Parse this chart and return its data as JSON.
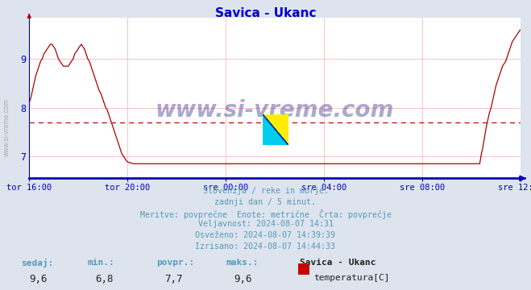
{
  "title": "Savica - Ukanc",
  "title_color": "#0000cc",
  "bg_color": "#dde4ee",
  "plot_bg_color": "#ffffff",
  "line_color": "#aa0000",
  "grid_color": "#ffaaaa",
  "grid_color_major": "#ffaaaa",
  "axis_color": "#0000bb",
  "avg_line_color": "#cc0000",
  "avg_value": 7.7,
  "y_min": 6.55,
  "y_max": 9.85,
  "y_ticks": [
    7,
    8,
    9
  ],
  "x_tick_labels": [
    "tor 16:00",
    "tor 20:00",
    "sre 00:00",
    "sre 04:00",
    "sre 08:00",
    "sre 12:00"
  ],
  "watermark_text": "www.si-vreme.com",
  "watermark_color": "#1a237e",
  "watermark_alpha": 0.38,
  "sidebar_text": "www.si-vreme.com",
  "footer_lines": [
    "Slovenija / reke in morje.",
    "zadnji dan / 5 minut.",
    "Meritve: povprečne  Enote: metrične  Črta: povprečje",
    "Veljavnost: 2024-08-07 14:31",
    "Osveženo: 2024-08-07 14:39:39",
    "Izrisano: 2024-08-07 14:44:33"
  ],
  "footer_color": "#5599bb",
  "stats_labels": [
    "sedaj:",
    "min.:",
    "povpr.:",
    "maks.:"
  ],
  "stats_values": [
    "9,6",
    "6,8",
    "7,7",
    "9,6"
  ],
  "legend_station": "Savica - Ukanc",
  "legend_label": "temperatura[C]",
  "legend_color": "#cc0000",
  "temp_data": [
    8.1,
    8.2,
    8.35,
    8.5,
    8.65,
    8.75,
    8.85,
    8.95,
    9.0,
    9.1,
    9.15,
    9.2,
    9.25,
    9.3,
    9.3,
    9.25,
    9.2,
    9.1,
    9.0,
    8.95,
    8.9,
    8.85,
    8.85,
    8.85,
    8.85,
    8.9,
    8.95,
    9.0,
    9.1,
    9.15,
    9.2,
    9.25,
    9.3,
    9.25,
    9.2,
    9.1,
    9.0,
    8.95,
    8.85,
    8.75,
    8.65,
    8.55,
    8.45,
    8.35,
    8.3,
    8.2,
    8.1,
    8.0,
    7.95,
    7.85,
    7.75,
    7.65,
    7.55,
    7.45,
    7.35,
    7.25,
    7.15,
    7.05,
    7.0,
    6.95,
    6.9,
    6.88,
    6.87,
    6.86,
    6.85,
    6.85,
    6.85,
    6.85,
    6.85,
    6.85,
    6.85,
    6.85,
    6.85,
    6.85,
    6.85,
    6.85,
    6.85,
    6.85,
    6.85,
    6.85,
    6.85,
    6.85,
    6.85,
    6.85,
    6.85,
    6.85,
    6.85,
    6.85,
    6.85,
    6.85,
    6.85,
    6.85,
    6.85,
    6.85,
    6.85,
    6.85,
    6.85,
    6.85,
    6.85,
    6.85,
    6.85,
    6.85,
    6.85,
    6.85,
    6.85,
    6.85,
    6.85,
    6.85,
    6.85,
    6.85,
    6.85,
    6.85,
    6.85,
    6.85,
    6.85,
    6.85,
    6.85,
    6.85,
    6.85,
    6.85,
    6.85,
    6.85,
    6.85,
    6.85,
    6.85,
    6.85,
    6.85,
    6.85,
    6.85,
    6.85,
    6.85,
    6.85,
    6.85,
    6.85,
    6.85,
    6.85,
    6.85,
    6.85,
    6.85,
    6.85,
    6.85,
    6.85,
    6.85,
    6.85,
    6.85,
    6.85,
    6.85,
    6.85,
    6.85,
    6.85,
    6.85,
    6.85,
    6.85,
    6.85,
    6.85,
    6.85,
    6.85,
    6.85,
    6.85,
    6.85,
    6.85,
    6.85,
    6.85,
    6.85,
    6.85,
    6.85,
    6.85,
    6.85,
    6.85,
    6.85,
    6.85,
    6.85,
    6.85,
    6.85,
    6.85,
    6.85,
    6.85,
    6.85,
    6.85,
    6.85,
    6.85,
    6.85,
    6.85,
    6.85,
    6.85,
    6.85,
    6.85,
    6.85,
    6.85,
    6.85,
    6.85,
    6.85,
    6.85,
    6.85,
    6.85,
    6.85,
    6.85,
    6.85,
    6.85,
    6.85,
    6.85,
    6.85,
    6.85,
    6.85,
    6.85,
    6.85,
    6.85,
    6.85,
    6.85,
    6.85,
    6.85,
    6.85,
    6.85,
    6.85,
    6.85,
    6.85,
    6.85,
    6.85,
    6.85,
    6.85,
    6.85,
    6.85,
    6.85,
    6.85,
    6.85,
    6.85,
    6.85,
    6.85,
    6.85,
    6.85,
    6.85,
    6.85,
    6.85,
    6.85,
    6.85,
    6.85,
    6.85,
    6.85,
    6.85,
    6.85,
    6.85,
    6.85,
    6.85,
    6.85,
    6.85,
    6.85,
    6.85,
    6.85,
    6.85,
    6.85,
    6.85,
    6.85,
    6.85,
    6.85,
    6.85,
    6.85,
    6.85,
    6.85,
    6.85,
    6.85,
    6.85,
    6.85,
    6.85,
    6.85,
    6.85,
    6.85,
    6.85,
    6.85,
    6.85,
    6.85,
    6.85,
    6.85,
    6.85,
    6.85,
    6.85,
    6.85,
    6.85,
    6.85,
    7.05,
    7.2,
    7.4,
    7.6,
    7.75,
    7.9,
    8.0,
    8.15,
    8.3,
    8.45,
    8.55,
    8.65,
    8.75,
    8.85,
    8.9,
    8.95,
    9.05,
    9.15,
    9.25,
    9.35,
    9.4,
    9.45,
    9.5,
    9.55,
    9.6
  ]
}
